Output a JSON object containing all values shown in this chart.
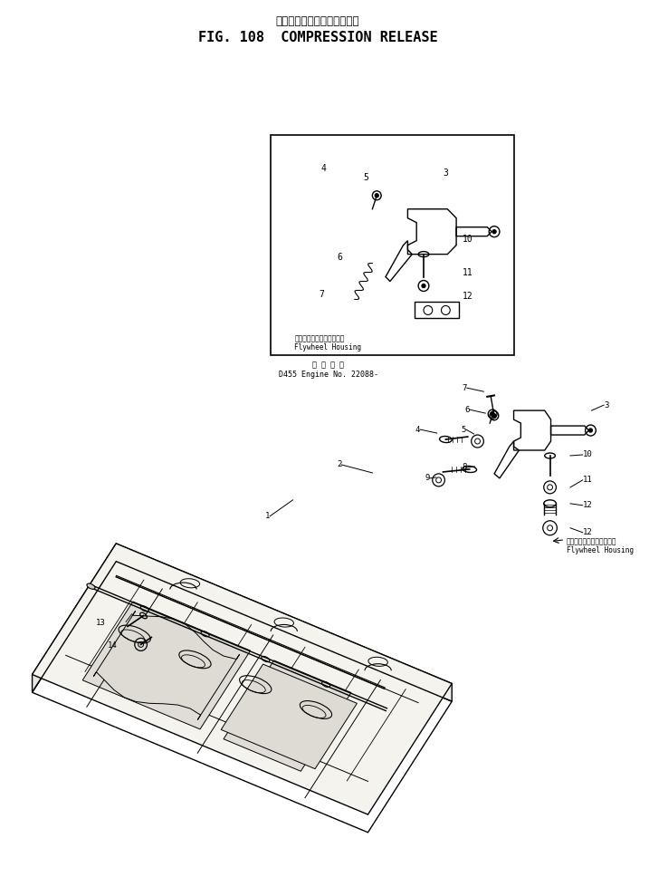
{
  "title_japanese": "コンプレッション　リリーズ",
  "title_english": "FIG. 108  COMPRESSION RELEASE",
  "subtitle_japanese": "適 用 番 号",
  "subtitle_engine": "D455 Engine No. 22088-",
  "inset_label_japanese": "フライホイールハウジング",
  "inset_label_english": "Flywheel Housing",
  "main_label_japanese": "フライホイールハウジング",
  "main_label_english": "Flywheel Housing",
  "background_color": "#ffffff",
  "drawing_color": "#000000",
  "fig_width": 7.17,
  "fig_height": 9.89,
  "fig_dpi": 100
}
